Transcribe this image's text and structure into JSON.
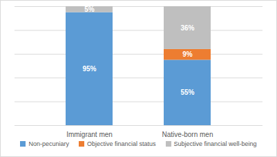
{
  "chart_data": {
    "type": "bar",
    "stacked": true,
    "data_labels": true,
    "grid": true,
    "tick_labels": "x",
    "legend": "bottom",
    "categories": [
      "Immigrant men",
      "Native-born men"
    ],
    "ylim": [
      0,
      100
    ],
    "yticks": [
      0,
      20,
      40,
      60,
      80,
      100
    ],
    "series": [
      {
        "name": "Non-pecuniary",
        "color": "#5b9bd5",
        "values": [
          95,
          55
        ],
        "value_labels": [
          "95%",
          "55%"
        ]
      },
      {
        "name": "Objective financial status",
        "color": "#ed7d31",
        "values": [
          null,
          9
        ],
        "value_labels": [
          null,
          "9%"
        ]
      },
      {
        "name": "Subjective financial well-being",
        "color": "#bfbfbf",
        "values": [
          5,
          36
        ],
        "value_labels": [
          "5%",
          "36%"
        ]
      }
    ]
  }
}
